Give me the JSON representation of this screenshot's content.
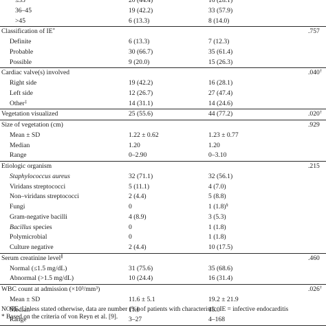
{
  "table": {
    "rows": [
      {
        "label": "≤35",
        "indent": 2,
        "col1": "20 (44.4)",
        "col2": "16 (28.1)",
        "p": ""
      },
      {
        "label": "36–45",
        "indent": 2,
        "col1": "19 (42.2)",
        "col2": "33 (57.9)",
        "p": ""
      },
      {
        "label": ">45",
        "indent": 2,
        "col1": "6 (13.3)",
        "col2": "8 (14.0)",
        "p": "",
        "rule": true
      },
      {
        "label": "Classification of IE",
        "sup": "*",
        "indent": 0,
        "col1": "",
        "col2": "",
        "p": ".757"
      },
      {
        "label": "Definite",
        "indent": 1,
        "col1": "6 (13.3)",
        "col2": "7 (12.3)",
        "p": ""
      },
      {
        "label": "Probable",
        "indent": 1,
        "col1": "30 (66.7)",
        "col2": "35 (61.4)",
        "p": ""
      },
      {
        "label": "Possible",
        "indent": 1,
        "col1": "9 (20.0)",
        "col2": "15 (26.3)",
        "p": "",
        "rule": true
      },
      {
        "label": "Cardiac valve(s) involved",
        "indent": 0,
        "col1": "",
        "col2": "",
        "p": ".040",
        "psup": "†"
      },
      {
        "label": "Right side",
        "indent": 1,
        "col1": "19 (42.2)",
        "col2": "16 (28.1)",
        "p": ""
      },
      {
        "label": "Left side",
        "indent": 1,
        "col1": "12 (26.7)",
        "col2": "27 (47.4)",
        "p": ""
      },
      {
        "label": "Other",
        "sup": "‡",
        "indent": 1,
        "col1": "14 (31.1)",
        "col2": "14 (24.6)",
        "p": "",
        "rule": true
      },
      {
        "label": "Vegetation visualized",
        "indent": 0,
        "col1": "25 (55.6)",
        "col2": "44 (77.2)",
        "p": ".020",
        "psup": "†",
        "rule": true
      },
      {
        "label": "Size of vegetation (cm)",
        "indent": 0,
        "col1": "",
        "col2": "",
        "p": ".929"
      },
      {
        "label": "Mean ± SD",
        "indent": 1,
        "col1": "1.22 ± 0.62",
        "col2": "1.23 ± 0.77",
        "p": ""
      },
      {
        "label": "Median",
        "indent": 1,
        "col1": "1.20",
        "col2": "1.20",
        "p": ""
      },
      {
        "label": "Range",
        "indent": 1,
        "col1": "0–2.90",
        "col2": "0–3.10",
        "p": "",
        "rule": true
      },
      {
        "label": "Etiologic organism",
        "indent": 0,
        "col1": "",
        "col2": "",
        "p": ".215"
      },
      {
        "label": "Staphylococcus aureus",
        "italic": true,
        "indent": 1,
        "col1": "32 (71.1)",
        "col2": "32 (56.1)",
        "p": ""
      },
      {
        "label": "Viridans streptococci",
        "indent": 1,
        "col1": "5 (11.1)",
        "col2": "4 (7.0)",
        "p": ""
      },
      {
        "label": "Non–viridans streptococci",
        "indent": 1,
        "col1": "2 (4.4)",
        "col2": "5 (8.8)",
        "p": ""
      },
      {
        "label": "Fungi",
        "indent": 1,
        "col1": "0",
        "col2": "1 (1.8)",
        "col2sup": "§",
        "p": ""
      },
      {
        "label": "Gram-negative bacilli",
        "indent": 1,
        "col1": "4 (8.9)",
        "col2": "3 (5.3)",
        "p": ""
      },
      {
        "label": "Bacillus",
        "italic": true,
        "suffix": " species",
        "indent": 1,
        "col1": "0",
        "col2": "1 (1.8)",
        "p": ""
      },
      {
        "label": "Polymicrobial",
        "indent": 1,
        "col1": "0",
        "col2": "1 (1.8)",
        "p": ""
      },
      {
        "label": "Culture negative",
        "indent": 1,
        "col1": "2 (4.4)",
        "col2": "10 (17.5)",
        "p": "",
        "rule": true
      },
      {
        "label": "Serum creatinine level",
        "sup": "∥",
        "indent": 0,
        "col1": "",
        "col2": "",
        "p": ".460"
      },
      {
        "label": "Normal (≤1.5 mg/dL)",
        "indent": 1,
        "col1": "31 (75.6)",
        "col2": "35 (68.6)",
        "p": ""
      },
      {
        "label": "Abnormal (>1.5 mg/dL)",
        "indent": 1,
        "col1": "10 (24.4)",
        "col2": "16 (31.4)",
        "p": "",
        "rule": true
      },
      {
        "label": "WBC count at admission (×10³/mm³)",
        "indent": 0,
        "col1": "",
        "col2": "",
        "p": ".026",
        "psup": "†"
      },
      {
        "label": "Mean ± SD",
        "indent": 1,
        "col1": "11.6 ± 5.1",
        "col2": "19.2 ± 21.9",
        "p": ""
      },
      {
        "label": "Median",
        "indent": 1,
        "col1": "11.0",
        "col2": "15.0",
        "p": ""
      },
      {
        "label": "Range",
        "indent": 1,
        "col1": "3–27",
        "col2": "4–168",
        "p": "",
        "rule": true
      }
    ]
  },
  "notes": {
    "line1": "NOTE.   Unless stated otherwise, data are number (%) of patients with characteristic. IE = infective endocarditis",
    "line2": "* Based on the criteria of von Reyn et al. [9]."
  }
}
